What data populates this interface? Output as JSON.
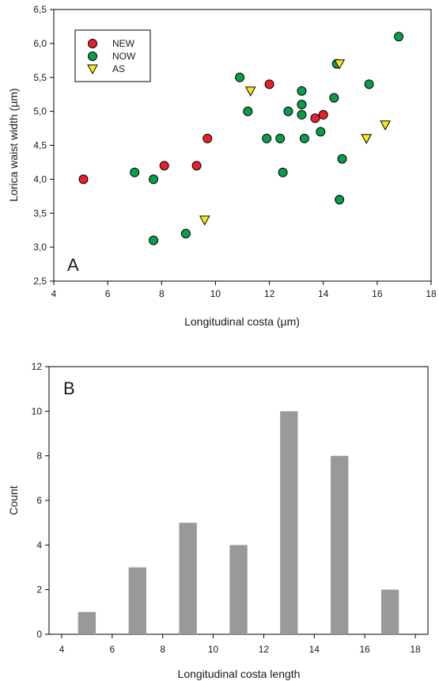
{
  "chart_data": [
    {
      "type": "scatter",
      "panel_label": "A",
      "xlabel": "Longitudinal costa (µm)",
      "ylabel": "Lorica waist width (µm)",
      "xlim": [
        4,
        18
      ],
      "ylim": [
        2.5,
        6.5
      ],
      "x_ticks": [
        "4",
        "6",
        "8",
        "10",
        "12",
        "14",
        "16",
        "18"
      ],
      "y_ticks": [
        "2,5",
        "3,0",
        "3,5",
        "4,0",
        "4,5",
        "5,0",
        "5,5",
        "6,0",
        "6,5"
      ],
      "legend_position": "top-left",
      "series": [
        {
          "name": "NEW",
          "marker": "circle",
          "color": "#e8202a",
          "points": [
            [
              5.1,
              4.0
            ],
            [
              8.1,
              4.2
            ],
            [
              9.3,
              4.2
            ],
            [
              9.7,
              4.6
            ],
            [
              12.0,
              5.4
            ],
            [
              13.7,
              4.9
            ],
            [
              14.0,
              4.95
            ]
          ]
        },
        {
          "name": "NOW",
          "marker": "circle",
          "color": "#0a9d4a",
          "points": [
            [
              7.0,
              4.1
            ],
            [
              7.7,
              4.0
            ],
            [
              7.7,
              3.1
            ],
            [
              8.9,
              3.2
            ],
            [
              10.9,
              5.5
            ],
            [
              11.2,
              5.0
            ],
            [
              11.9,
              4.6
            ],
            [
              12.4,
              4.6
            ],
            [
              12.5,
              4.1
            ],
            [
              12.7,
              5.0
            ],
            [
              13.2,
              5.3
            ],
            [
              13.2,
              5.1
            ],
            [
              13.2,
              4.95
            ],
            [
              13.3,
              4.6
            ],
            [
              13.9,
              4.7
            ],
            [
              14.4,
              5.2
            ],
            [
              14.5,
              5.7
            ],
            [
              14.6,
              3.7
            ],
            [
              14.7,
              4.3
            ],
            [
              15.7,
              5.4
            ],
            [
              16.8,
              6.1
            ]
          ]
        },
        {
          "name": "AS",
          "marker": "triangle-down",
          "color": "#f5ea14",
          "points": [
            [
              9.6,
              3.4
            ],
            [
              11.3,
              5.3
            ],
            [
              14.6,
              5.7
            ],
            [
              15.6,
              4.6
            ],
            [
              16.3,
              4.8
            ]
          ]
        }
      ]
    },
    {
      "type": "bar",
      "panel_label": "B",
      "xlabel": "Longitudinal costa length",
      "ylabel": "Count",
      "xlim": [
        3.5,
        18.5
      ],
      "ylim": [
        0,
        12
      ],
      "x_ticks": [
        "4",
        "6",
        "8",
        "10",
        "12",
        "14",
        "16",
        "18"
      ],
      "y_ticks": [
        "0",
        "2",
        "4",
        "6",
        "8",
        "10",
        "12"
      ],
      "bar_color": "#999999",
      "bar_width": 0.7,
      "x": [
        5,
        7,
        9,
        11,
        13,
        15,
        17
      ],
      "values": [
        1,
        3,
        5,
        4,
        10,
        8,
        2
      ]
    }
  ]
}
